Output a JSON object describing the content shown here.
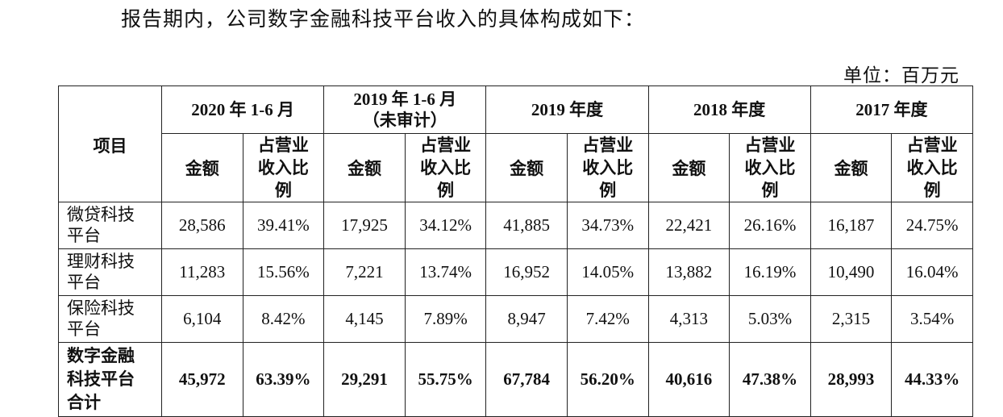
{
  "header": {
    "title": "报告期内，公司数字金融科技平台收入的具体构成如下：",
    "unit": "单位：百万元"
  },
  "table": {
    "item_header": "项目",
    "periods": [
      {
        "label": "2020 年 1-6 月"
      },
      {
        "label": "2019 年 1-6 月",
        "note": "（未审计）"
      },
      {
        "label": "2019 年度"
      },
      {
        "label": "2018 年度"
      },
      {
        "label": "2017 年度"
      }
    ],
    "subheaders": [
      "金额",
      "占营业收入比例"
    ],
    "rows": [
      {
        "label": "微贷科技平台",
        "cells": [
          "28,586",
          "39.41%",
          "17,925",
          "34.12%",
          "41,885",
          "34.73%",
          "22,421",
          "26.16%",
          "16,187",
          "24.75%"
        ]
      },
      {
        "label": "理财科技平台",
        "cells": [
          "11,283",
          "15.56%",
          "7,221",
          "13.74%",
          "16,952",
          "14.05%",
          "13,882",
          "16.19%",
          "10,490",
          "16.04%"
        ]
      },
      {
        "label": "保险科技平台",
        "cells": [
          "6,104",
          "8.42%",
          "4,145",
          "7.89%",
          "8,947",
          "7.42%",
          "4,313",
          "5.03%",
          "2,315",
          "3.54%"
        ]
      },
      {
        "label": "数字金融科技平台合计",
        "total": true,
        "cells": [
          "45,972",
          "63.39%",
          "29,291",
          "55.75%",
          "67,784",
          "56.20%",
          "40,616",
          "47.38%",
          "28,993",
          "44.33%"
        ]
      }
    ]
  }
}
